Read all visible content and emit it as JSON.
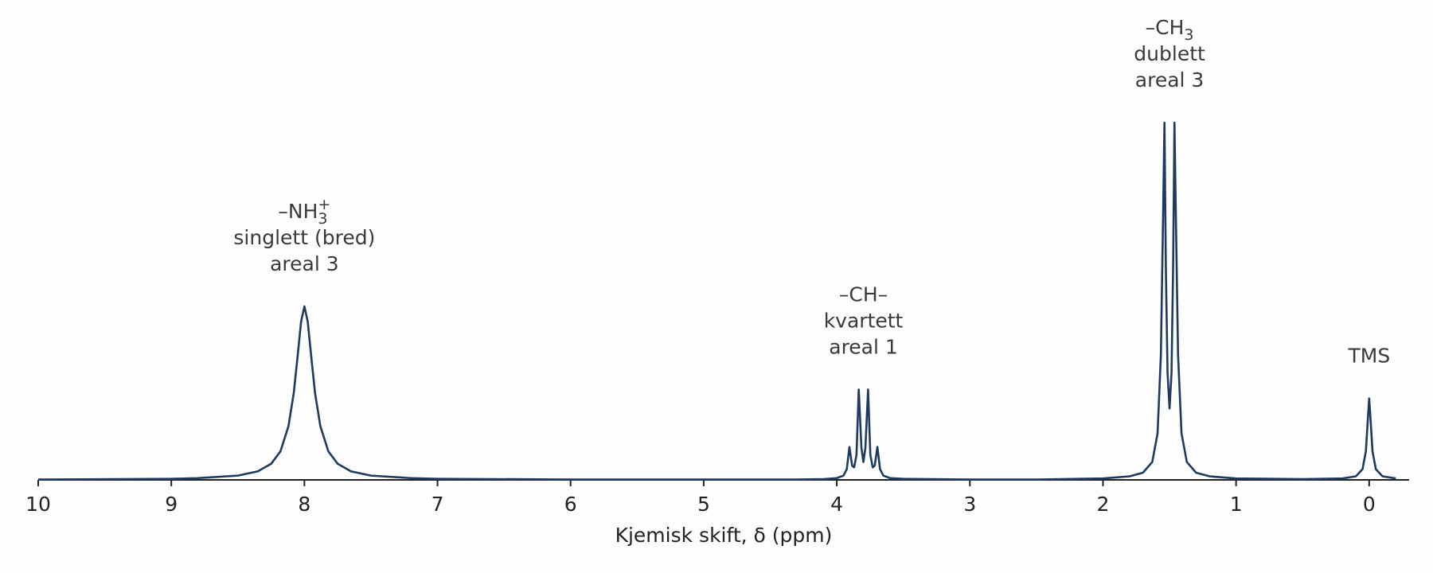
{
  "chart_data": {
    "type": "line",
    "x_label": "Kjemisk skift, δ (ppm)",
    "xlim": [
      10,
      -0.3
    ],
    "xticks": [
      10,
      9,
      8,
      7,
      6,
      5,
      4,
      3,
      2,
      1,
      0
    ],
    "ylim": [
      0,
      1.25
    ],
    "color": "#1f3a5f",
    "x": [
      10,
      9,
      8.8,
      8.5,
      8.35,
      8.25,
      8.18,
      8.12,
      8.08,
      8.05,
      8.025,
      8,
      7.975,
      7.95,
      7.92,
      7.88,
      7.82,
      7.75,
      7.65,
      7.5,
      7.2,
      7,
      6,
      5,
      4.3,
      4.1,
      4,
      3.95,
      3.925,
      3.905,
      3.885,
      3.87,
      3.852,
      3.835,
      3.815,
      3.8,
      3.785,
      3.765,
      3.748,
      3.73,
      3.715,
      3.695,
      3.675,
      3.65,
      3.6,
      3.5,
      3,
      2.5,
      2,
      1.8,
      1.7,
      1.63,
      1.59,
      1.565,
      1.548,
      1.538,
      1.528,
      1.515,
      1.5,
      1.485,
      1.473,
      1.463,
      1.453,
      1.436,
      1.41,
      1.37,
      1.3,
      1.2,
      1,
      0.5,
      0.2,
      0.1,
      0.05,
      0.025,
      0.01,
      0,
      -0.01,
      -0.025,
      -0.05,
      -0.1,
      -0.2
    ],
    "values": [
      0.001,
      0.003,
      0.005,
      0.012,
      0.024,
      0.045,
      0.08,
      0.15,
      0.243,
      0.35,
      0.443,
      0.486,
      0.443,
      0.35,
      0.243,
      0.15,
      0.08,
      0.045,
      0.024,
      0.012,
      0.005,
      0.003,
      0.001,
      0.001,
      0.001,
      0.002,
      0.005,
      0.012,
      0.03,
      0.092,
      0.04,
      0.035,
      0.07,
      0.253,
      0.09,
      0.05,
      0.09,
      0.253,
      0.07,
      0.035,
      0.04,
      0.092,
      0.03,
      0.012,
      0.005,
      0.003,
      0.001,
      0.001,
      0.004,
      0.01,
      0.02,
      0.05,
      0.13,
      0.35,
      0.75,
      1,
      0.6,
      0.3,
      0.2,
      0.3,
      0.6,
      1,
      0.75,
      0.35,
      0.13,
      0.05,
      0.02,
      0.01,
      0.004,
      0.002,
      0.004,
      0.01,
      0.03,
      0.08,
      0.17,
      0.228,
      0.17,
      0.08,
      0.03,
      0.01,
      0.004
    ],
    "annotations": [
      {
        "x": 8,
        "lines": [
          {
            "text": "–NH",
            "sub": "3",
            "sup": "+"
          },
          "singlett (bred)",
          "areal 3"
        ]
      },
      {
        "x": 3.8,
        "lines": [
          "–CH–",
          "kvartett",
          "areal 1"
        ]
      },
      {
        "x": 1.5,
        "lines": [
          {
            "text": "–CH",
            "sub": "3"
          },
          "dublett",
          "areal 3"
        ]
      },
      {
        "x": 0,
        "lines": [
          "TMS"
        ]
      }
    ]
  }
}
